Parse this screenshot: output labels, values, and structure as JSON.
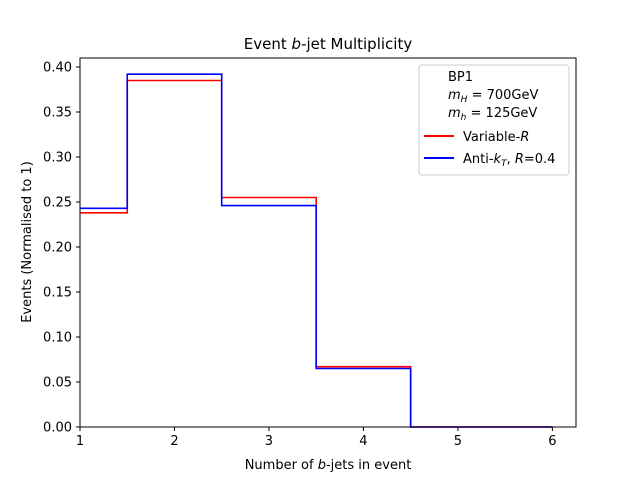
{
  "chart_data": {
    "type": "line",
    "style": "step histogram",
    "title": "Event b-jet Multiplicity",
    "xlabel": "Number of b-jets in event",
    "ylabel": "Events (Normalised to 1)",
    "xlim": [
      1,
      6.25
    ],
    "ylim": [
      0,
      0.41
    ],
    "xticks": [
      1,
      2,
      3,
      4,
      5,
      6
    ],
    "yticks": [
      0.0,
      0.05,
      0.1,
      0.15,
      0.2,
      0.25,
      0.3,
      0.35,
      0.4
    ],
    "xtick_labels": [
      "1",
      "2",
      "3",
      "4",
      "5",
      "6"
    ],
    "ytick_labels": [
      "0.00",
      "0.05",
      "0.10",
      "0.15",
      "0.20",
      "0.25",
      "0.30",
      "0.35",
      "0.40"
    ],
    "grid": false,
    "legend_position": "top-right",
    "legend_header": [
      "BP1",
      "m_H = 700GeV",
      "m_h = 125GeV"
    ],
    "bin_edges": [
      1,
      1.5,
      2.5,
      3.5,
      4.5,
      6
    ],
    "series": [
      {
        "name": "Variable-R",
        "color": "#ff0000",
        "values": [
          0.238,
          0.385,
          0.255,
          0.067,
          0.0
        ]
      },
      {
        "name": "Anti-kT, R=0.4",
        "color": "#0000ff",
        "values": [
          0.243,
          0.392,
          0.246,
          0.065,
          0.0
        ]
      }
    ]
  }
}
